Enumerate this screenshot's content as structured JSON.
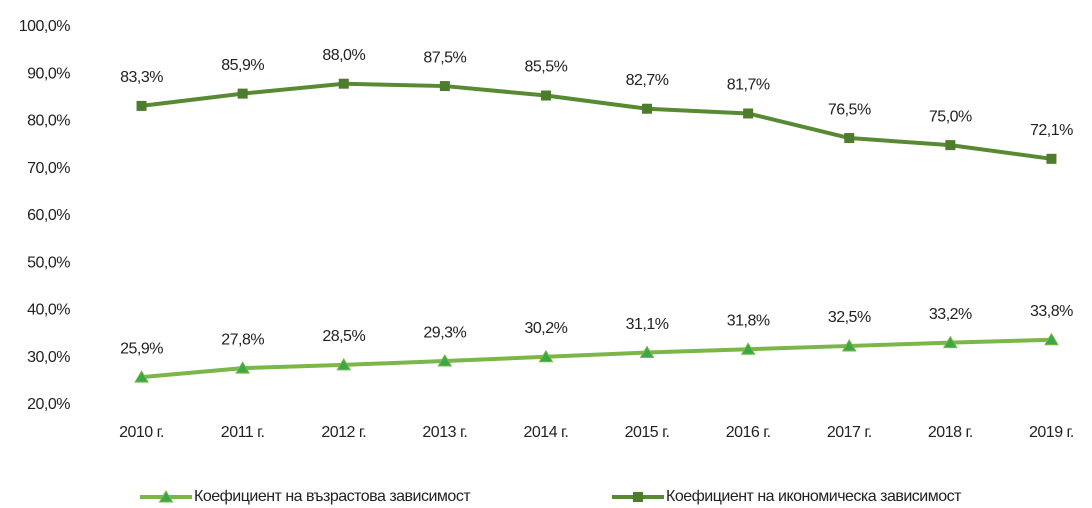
{
  "chart_data": {
    "type": "line",
    "categories": [
      "2010 г.",
      "2011 г.",
      "2012 г.",
      "2013 г.",
      "2014 г.",
      "2015 г.",
      "2016 г.",
      "2017 г.",
      "2018 г.",
      "2019 г."
    ],
    "series": [
      {
        "name": "Коефициент на възрастова зависимост",
        "color": "#7ab648",
        "marker": "triangle",
        "marker_color": "#3aa845",
        "values": [
          25.9,
          27.8,
          28.5,
          29.3,
          30.2,
          31.1,
          31.8,
          32.5,
          33.2,
          33.8
        ],
        "value_labels": [
          "25,9%",
          "27,8%",
          "28,5%",
          "29,3%",
          "30,2%",
          "31,1%",
          "31,8%",
          "32,5%",
          "33,2%",
          "33,8%"
        ]
      },
      {
        "name": "Коефициент на икономическа зависимост",
        "color": "#588a34",
        "marker": "square",
        "marker_color": "#4d7c2c",
        "values": [
          83.3,
          85.9,
          88.0,
          87.5,
          85.5,
          82.7,
          81.7,
          76.5,
          75.0,
          72.1
        ],
        "value_labels": [
          "83,3%",
          "85,9%",
          "88,0%",
          "87,5%",
          "85,5%",
          "82,7%",
          "81,7%",
          "76,5%",
          "75,0%",
          "72,1%"
        ]
      }
    ],
    "ylim": [
      20,
      100
    ],
    "yticks": [
      {
        "value": 20,
        "label": "20,0%"
      },
      {
        "value": 30,
        "label": "30,0%"
      },
      {
        "value": 40,
        "label": "40,0%"
      },
      {
        "value": 50,
        "label": "50,0%"
      },
      {
        "value": 60,
        "label": "60,0%"
      },
      {
        "value": 70,
        "label": "70,0%"
      },
      {
        "value": 80,
        "label": "80,0%"
      },
      {
        "value": 90,
        "label": "90,0%"
      },
      {
        "value": 100,
        "label": "100,0%"
      }
    ],
    "grid": false,
    "legend": "bottom"
  }
}
